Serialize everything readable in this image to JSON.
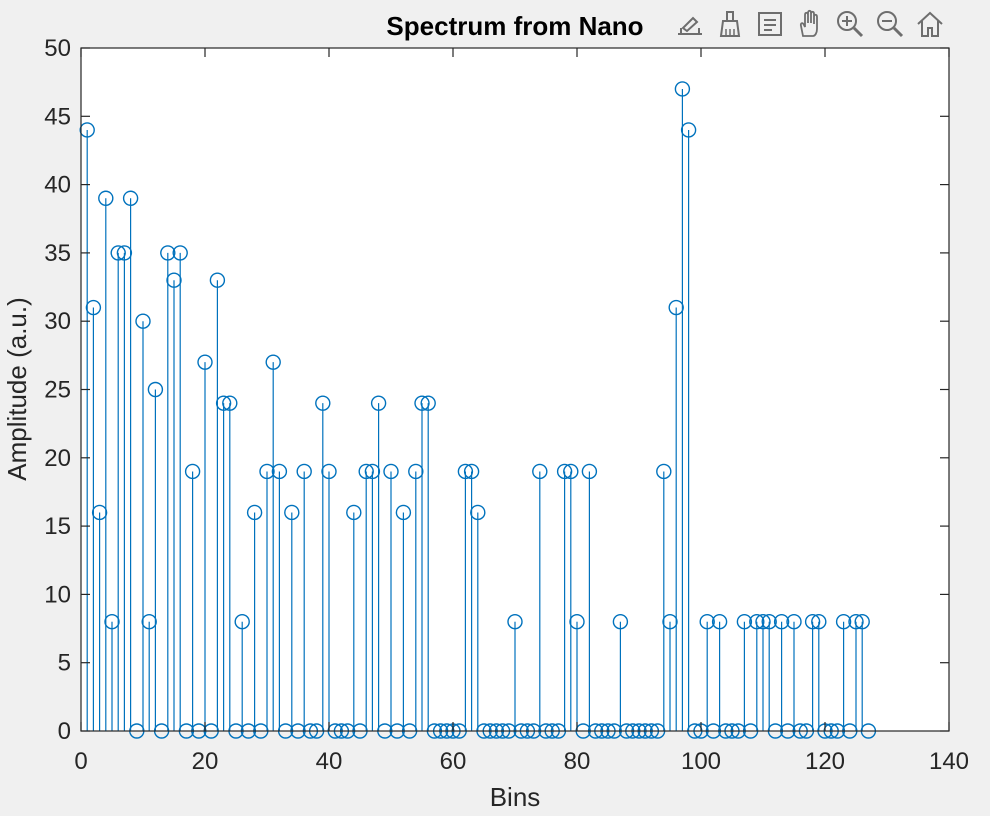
{
  "toolbar": {
    "buttons": [
      {
        "name": "export-icon"
      },
      {
        "name": "brush-icon"
      },
      {
        "name": "datatip-icon"
      },
      {
        "name": "pan-hand-icon"
      },
      {
        "name": "zoom-in-icon"
      },
      {
        "name": "zoom-out-icon"
      },
      {
        "name": "home-icon"
      }
    ]
  },
  "chart_data": {
    "type": "stem",
    "title": "Spectrum from Nano",
    "xlabel": "Bins",
    "ylabel": "Amplitude (a.u.)",
    "xlim": [
      0,
      140
    ],
    "ylim": [
      0,
      50
    ],
    "xticks": [
      "0",
      "20",
      "40",
      "60",
      "80",
      "100",
      "120",
      "140"
    ],
    "yticks": [
      "0",
      "5",
      "10",
      "15",
      "20",
      "25",
      "30",
      "35",
      "40",
      "45",
      "50"
    ],
    "grid": false,
    "color": "#0072bd",
    "x": [
      1,
      2,
      3,
      4,
      5,
      6,
      7,
      8,
      9,
      10,
      11,
      12,
      13,
      14,
      15,
      16,
      17,
      18,
      19,
      20,
      21,
      22,
      23,
      24,
      25,
      26,
      27,
      28,
      29,
      30,
      31,
      32,
      33,
      34,
      35,
      36,
      37,
      38,
      39,
      40,
      41,
      42,
      43,
      44,
      45,
      46,
      47,
      48,
      49,
      50,
      51,
      52,
      53,
      54,
      55,
      56,
      57,
      58,
      59,
      60,
      61,
      62,
      63,
      64,
      65,
      66,
      67,
      68,
      69,
      70,
      71,
      72,
      73,
      74,
      75,
      76,
      77,
      78,
      79,
      80,
      81,
      82,
      83,
      84,
      85,
      86,
      87,
      88,
      89,
      90,
      91,
      92,
      93,
      94,
      95,
      96,
      97,
      98,
      99,
      100,
      101,
      102,
      103,
      104,
      105,
      106,
      107,
      108,
      109,
      110,
      111,
      112,
      113,
      114,
      115,
      116,
      117,
      118,
      119,
      120,
      121,
      122,
      123,
      124,
      125,
      126,
      127
    ],
    "y": [
      44,
      31,
      16,
      39,
      8,
      35,
      35,
      39,
      0,
      30,
      8,
      25,
      0,
      35,
      33,
      35,
      0,
      19,
      0,
      27,
      0,
      33,
      24,
      24,
      0,
      8,
      0,
      16,
      0,
      19,
      27,
      19,
      0,
      16,
      0,
      19,
      0,
      0,
      24,
      19,
      0,
      0,
      0,
      16,
      0,
      19,
      19,
      24,
      0,
      19,
      0,
      16,
      0,
      19,
      24,
      24,
      0,
      0,
      0,
      0,
      0,
      19,
      19,
      16,
      0,
      0,
      0,
      0,
      0,
      8,
      0,
      0,
      0,
      19,
      0,
      0,
      0,
      19,
      19,
      8,
      0,
      19,
      0,
      0,
      0,
      0,
      8,
      0,
      0,
      0,
      0,
      0,
      0,
      19,
      8,
      31,
      47,
      44,
      0,
      0,
      8,
      0,
      8,
      0,
      0,
      0,
      8,
      0,
      8,
      8,
      8,
      0,
      8,
      0,
      8,
      0,
      0,
      8,
      8,
      0,
      0,
      0,
      8,
      0,
      8,
      8,
      0
    ]
  }
}
